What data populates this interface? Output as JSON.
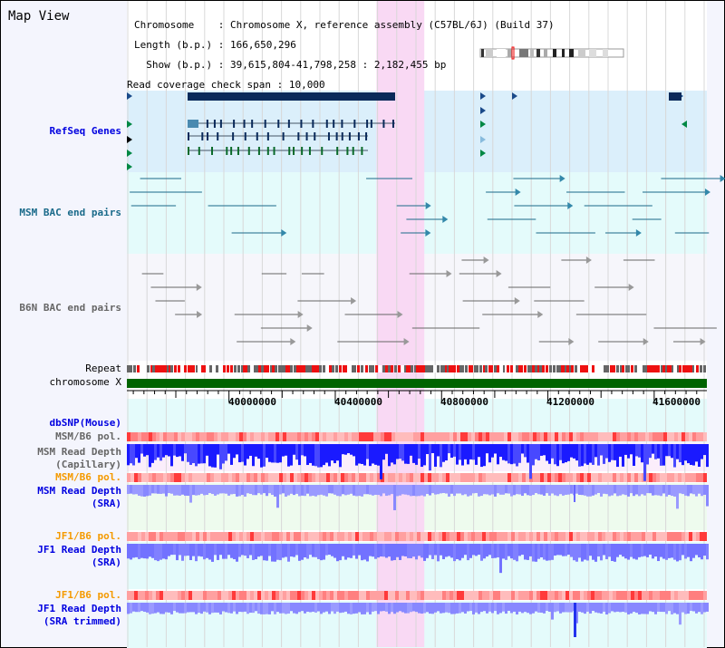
{
  "title": "Map View",
  "info": {
    "chromosome_label": "Chromosome    ",
    "chromosome_value": "Chromosome X, reference assembly (C57BL/6J) (Build 37)",
    "length_label": "Length (b.p.)",
    "length_value": "166,650,296",
    "show_label": "  Show (b.p.)",
    "show_value": "39,615,804-41,798,258 : 2,182,455 bp",
    "coverage_label": "Read coverage check span",
    "coverage_value": "10,000"
  },
  "tracks": {
    "refseq": "RefSeq Genes",
    "msm_bac": "MSM BAC end pairs",
    "b6n_bac": "B6N BAC end pairs",
    "repeat": "Repeat",
    "chromosome": "chromosome X",
    "dbsnp": "dbSNP(Mouse)",
    "msm_pol1": "MSM/B6 pol.",
    "msm_depth_cap_1": "MSM Read Depth",
    "msm_depth_cap_2": "(Capillary)",
    "msm_pol2": "MSM/B6 pol.",
    "msm_depth_sra_1": "MSM Read Depth",
    "msm_depth_sra_2": "(SRA)",
    "jf1_pol1": "JF1/B6 pol.",
    "jf1_depth_1": "JF1 Read Depth",
    "jf1_depth_2": "(SRA)",
    "jf1_pol2": "JF1/B6 pol.",
    "jf1_trim_1": "JF1 Read Depth",
    "jf1_trim_2": "(SRA trimmed)"
  },
  "axis": {
    "labels": [
      "40000000",
      "40400000",
      "40800000",
      "41200000",
      "41600000"
    ],
    "start": 39615804,
    "end": 41798258
  },
  "highlight": {
    "start": 40555000,
    "end": 40735000
  },
  "colors": {
    "highlight": "#f9d9f4",
    "chromosome": "#006400",
    "depth": "#1a1aff",
    "depth_light": "#7878ff"
  }
}
